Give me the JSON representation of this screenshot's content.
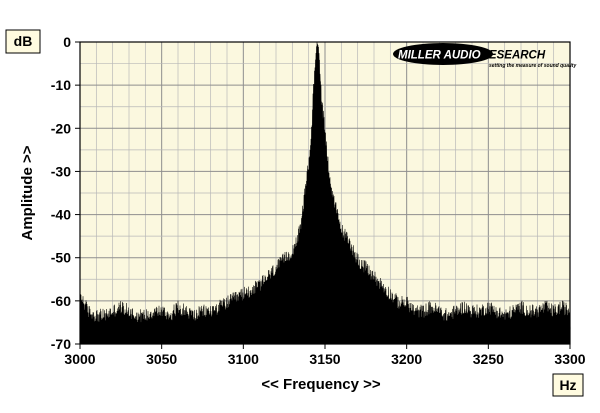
{
  "chart_data": {
    "type": "line",
    "title": "",
    "xlabel": "<< Frequency >>",
    "ylabel": "Amplitude >>",
    "x_unit": "Hz",
    "y_unit": "dB",
    "xlim": [
      3000,
      3300
    ],
    "ylim": [
      -70,
      0
    ],
    "x_ticks": [
      "3000",
      "3050",
      "3100",
      "3150",
      "3200",
      "3250",
      "3300"
    ],
    "y_ticks": [
      "0",
      "-10",
      "-20",
      "-30",
      "-40",
      "-50",
      "-60",
      "-70"
    ],
    "grid": true,
    "series": [
      {
        "values": [
          [
            3000,
            -60
          ],
          [
            3005,
            -64
          ],
          [
            3010,
            -65
          ],
          [
            3015,
            -65
          ],
          [
            3020,
            -64
          ],
          [
            3025,
            -63
          ],
          [
            3030,
            -64
          ],
          [
            3035,
            -65
          ],
          [
            3040,
            -65
          ],
          [
            3045,
            -64
          ],
          [
            3050,
            -64
          ],
          [
            3055,
            -65
          ],
          [
            3060,
            -63
          ],
          [
            3065,
            -64
          ],
          [
            3070,
            -65
          ],
          [
            3075,
            -64
          ],
          [
            3080,
            -64
          ],
          [
            3085,
            -63
          ],
          [
            3090,
            -62
          ],
          [
            3095,
            -61
          ],
          [
            3100,
            -60
          ],
          [
            3105,
            -59
          ],
          [
            3110,
            -58
          ],
          [
            3115,
            -56
          ],
          [
            3120,
            -54
          ],
          [
            3125,
            -52
          ],
          [
            3130,
            -50
          ],
          [
            3135,
            -45
          ],
          [
            3138,
            -35
          ],
          [
            3140,
            -30
          ],
          [
            3142,
            -20
          ],
          [
            3144,
            -5
          ],
          [
            3145,
            0
          ],
          [
            3146,
            -1
          ],
          [
            3148,
            -15
          ],
          [
            3150,
            -22
          ],
          [
            3152,
            -30
          ],
          [
            3155,
            -38
          ],
          [
            3158,
            -42
          ],
          [
            3160,
            -45
          ],
          [
            3165,
            -48
          ],
          [
            3170,
            -52
          ],
          [
            3175,
            -54
          ],
          [
            3180,
            -56
          ],
          [
            3185,
            -58
          ],
          [
            3190,
            -60
          ],
          [
            3195,
            -62
          ],
          [
            3200,
            -62
          ],
          [
            3205,
            -64
          ],
          [
            3210,
            -64
          ],
          [
            3215,
            -63
          ],
          [
            3220,
            -64
          ],
          [
            3225,
            -65
          ],
          [
            3230,
            -64
          ],
          [
            3235,
            -63
          ],
          [
            3240,
            -64
          ],
          [
            3245,
            -64
          ],
          [
            3250,
            -63
          ],
          [
            3255,
            -64
          ],
          [
            3260,
            -65
          ],
          [
            3265,
            -64
          ],
          [
            3270,
            -63
          ],
          [
            3275,
            -64
          ],
          [
            3280,
            -64
          ],
          [
            3285,
            -63
          ],
          [
            3290,
            -64
          ],
          [
            3295,
            -63
          ],
          [
            3300,
            -64
          ]
        ]
      }
    ],
    "colors": {
      "plot_bg": "#fbf8df",
      "trace": "#000000",
      "grid": "#b8b8b8"
    }
  },
  "logo": {
    "name": "MILLER AUDIO RESEARCH",
    "tagline": "setting the measure of sound quality"
  }
}
